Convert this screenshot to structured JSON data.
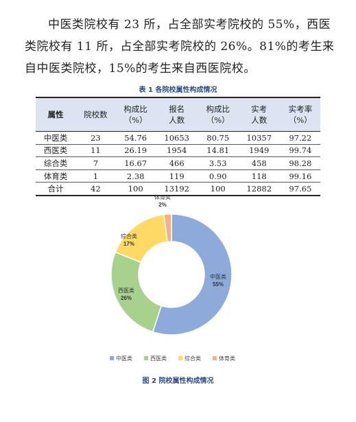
{
  "paragraph": "中医类院校有 23 所，占全部实考院校的 55%，西医类院校有 11 所，占全部实考院校的 26%。81%的考生来自中医类院校，15%的考生来自西医院校。",
  "table": {
    "caption": "表 1 各院校属性构成情况",
    "headers": [
      [
        "属性"
      ],
      [
        "院校数"
      ],
      [
        "构成比",
        "（%）"
      ],
      [
        "报名",
        "人数"
      ],
      [
        "构成比",
        "（%）"
      ],
      [
        "实考",
        "人数"
      ],
      [
        "实考率",
        "（%）"
      ]
    ],
    "rows": [
      [
        "中医类",
        "23",
        "54.76",
        "10653",
        "80.75",
        "10357",
        "97.22"
      ],
      [
        "西医类",
        "11",
        "26.19",
        "1954",
        "14.81",
        "1949",
        "99.74"
      ],
      [
        "综合类",
        "7",
        "16.67",
        "466",
        "3.53",
        "458",
        "98.28"
      ],
      [
        "体育类",
        "1",
        "2.38",
        "119",
        "0.90",
        "118",
        "99.16"
      ],
      [
        "合计",
        "42",
        "100",
        "13192",
        "100",
        "12882",
        "97.65"
      ]
    ]
  },
  "chart_data": {
    "type": "pie",
    "style": "donut",
    "categories": [
      "中医类",
      "西医类",
      "综合类",
      "体育类"
    ],
    "values": [
      55,
      26,
      17,
      2
    ],
    "value_labels": [
      "55%",
      "26%",
      "17%",
      "2%"
    ],
    "colors": [
      "#8eaadb",
      "#a9d18e",
      "#ffd966",
      "#f4b183"
    ],
    "legend_position": "bottom"
  },
  "figure_caption": "图 2 院校属性构成情况"
}
